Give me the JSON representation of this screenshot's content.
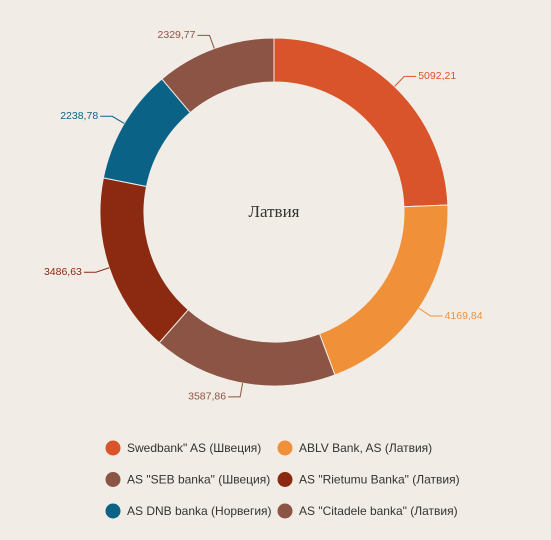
{
  "chart_data": {
    "type": "pie",
    "title": "Латвия",
    "categories": [
      "Swedbank\" AS (Швеция)",
      "ABLV Bank, AS (Латвия)",
      "AS \"SEB banka\" (Швеция)",
      "AS \"Rietumu Banka\" (Латвия)",
      "AS DNB banka (Норвегия)",
      "AS \"Citadele banka\" (Латвия)"
    ],
    "values": [
      5092.21,
      4169.84,
      3587.86,
      3486.63,
      2238.78,
      2329.77
    ],
    "value_labels": [
      "5092,21",
      "4169,84",
      "3587,86",
      "3486,63",
      "2238,78",
      "2329,77"
    ],
    "colors": [
      "#d9542b",
      "#f0913a",
      "#8b5444",
      "#8b2a10",
      "#0b6287",
      "#8b5444"
    ]
  }
}
